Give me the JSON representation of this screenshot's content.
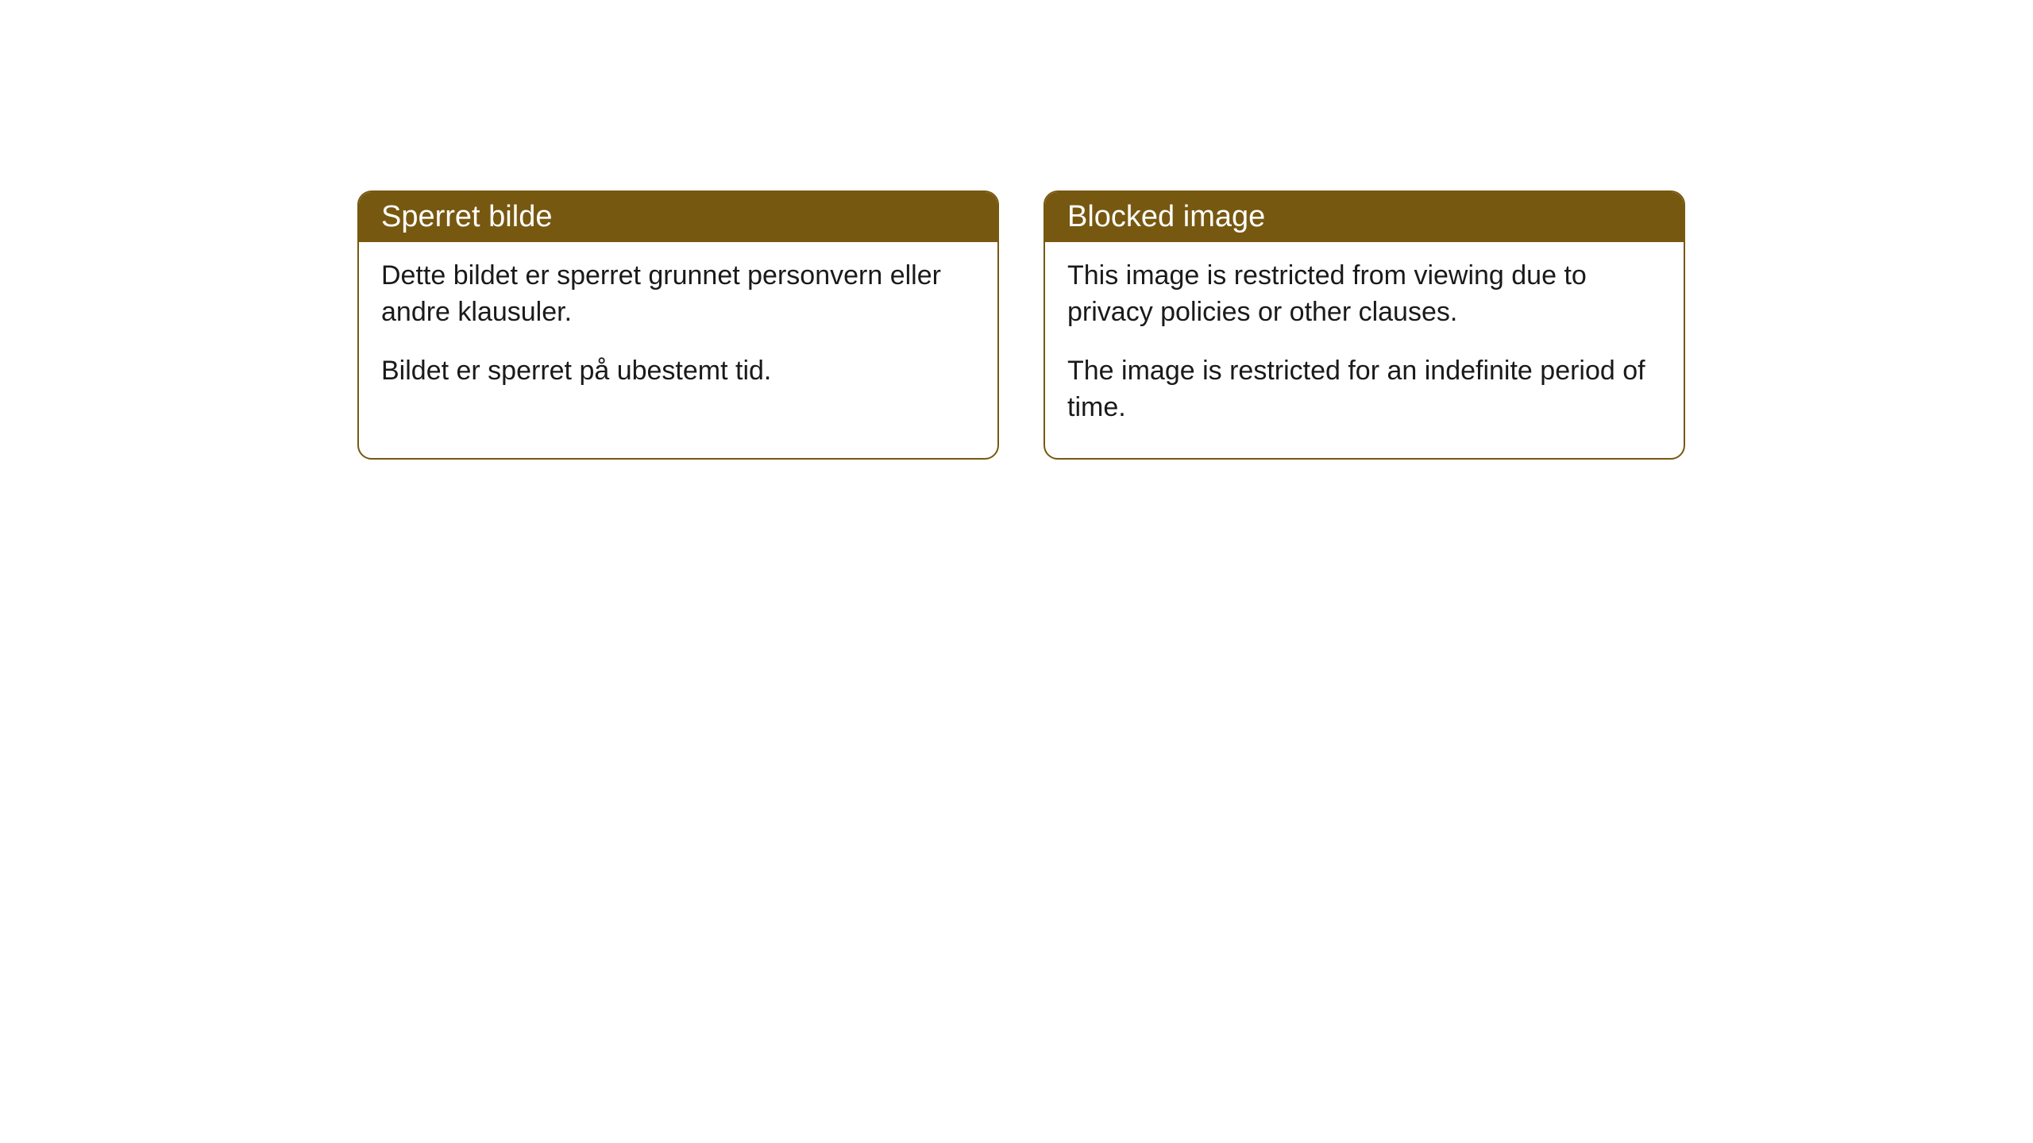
{
  "cards": [
    {
      "title": "Sperret bilde",
      "paragraph1": "Dette bildet er sperret grunnet personvern eller andre klausuler.",
      "paragraph2": "Bildet er sperret på ubestemt tid."
    },
    {
      "title": "Blocked image",
      "paragraph1": "This image is restricted from viewing due to privacy policies or other clauses.",
      "paragraph2": "The image is restricted for an indefinite period of time."
    }
  ],
  "style": {
    "header_bg": "#775810",
    "header_text": "#ffffff",
    "border_color": "#775810",
    "body_bg": "#ffffff",
    "body_text": "#1a1a1a",
    "border_radius": 18,
    "header_fontsize": 38,
    "body_fontsize": 34
  }
}
